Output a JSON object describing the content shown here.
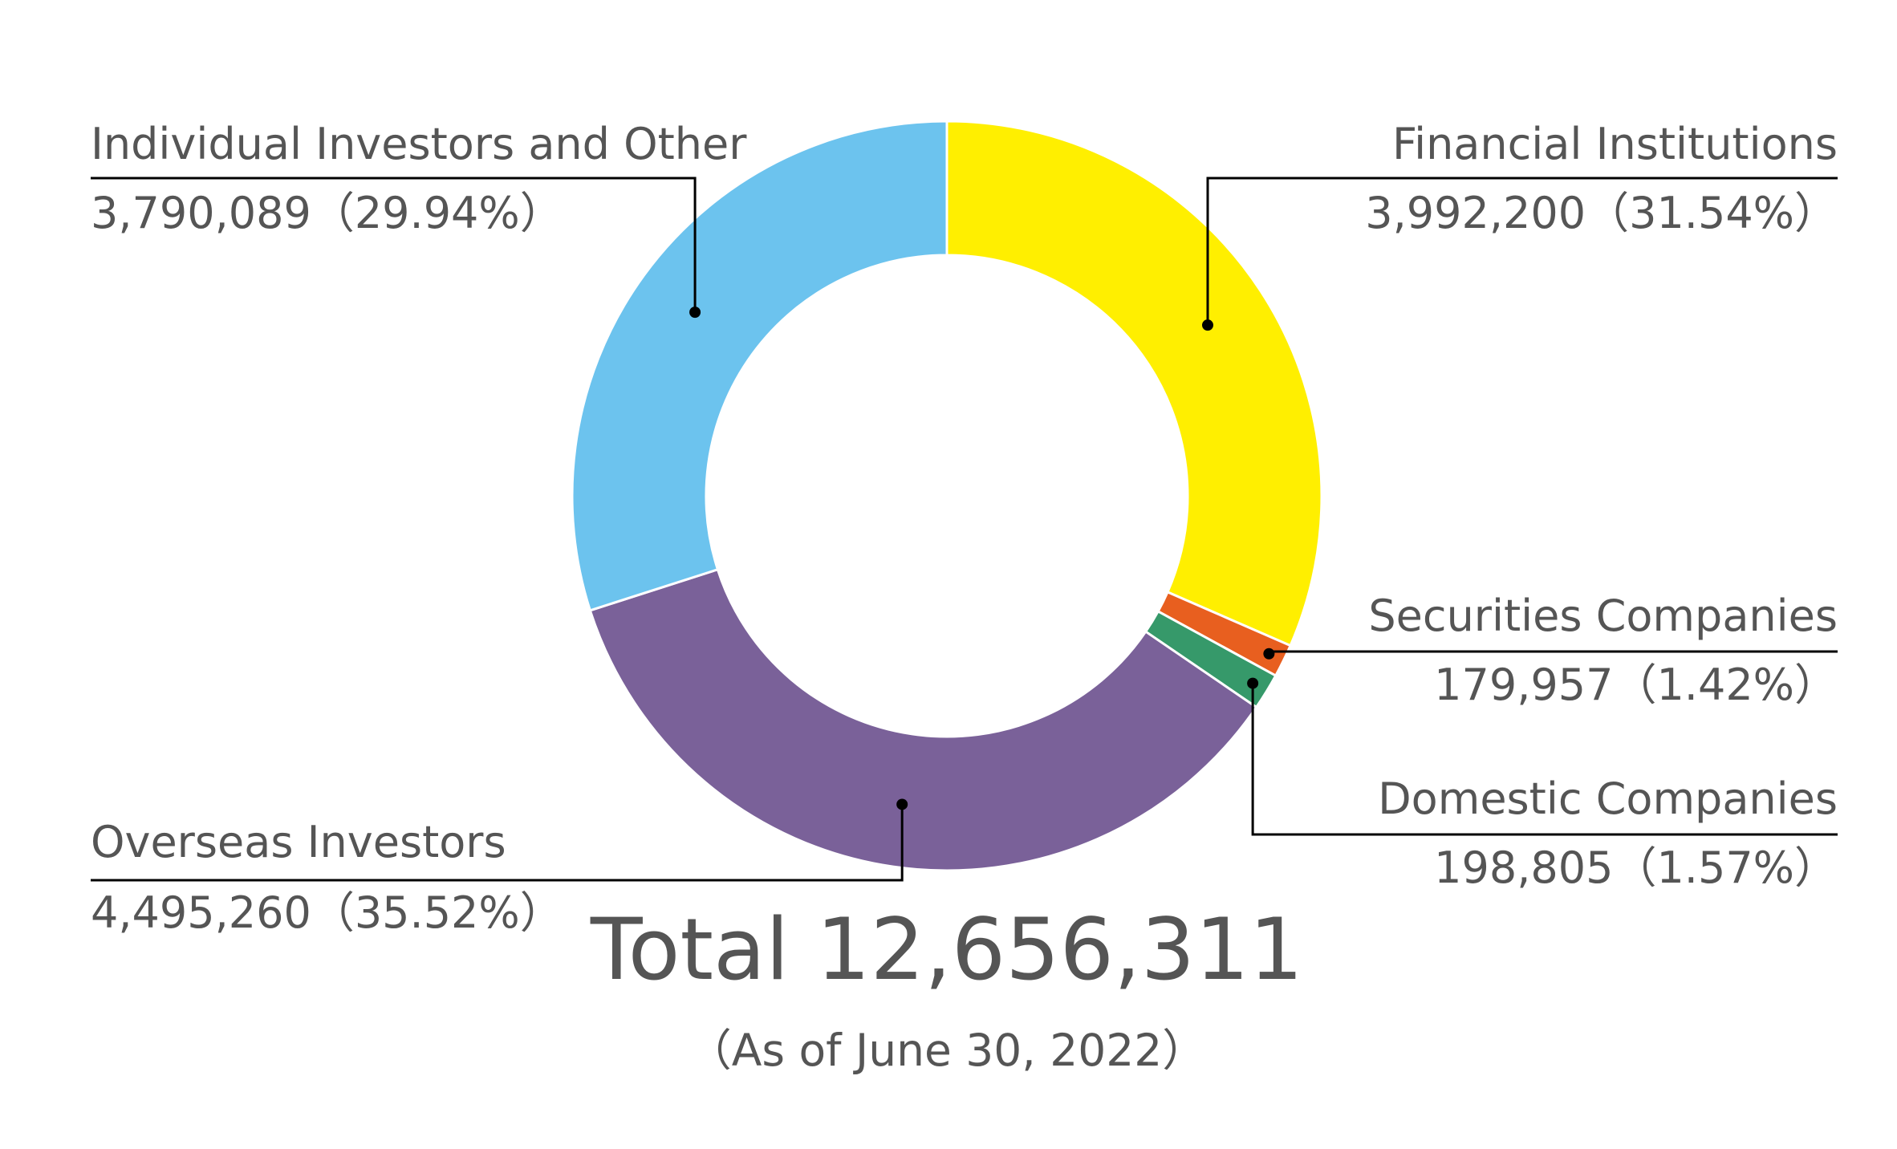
{
  "chart_data": {
    "type": "pie",
    "variant": "donut",
    "unit": "shares",
    "slices": [
      {
        "name": "Financial Institutions",
        "value": 3992200,
        "value_text": "3,992,200",
        "percent_text": "31.54%",
        "color": "#FFEF00",
        "label_side": "right"
      },
      {
        "name": "Securities Companies",
        "value": 179957,
        "value_text": "179,957",
        "percent_text": "1.42%",
        "color": "#E85F1F",
        "label_side": "right"
      },
      {
        "name": "Domestic Companies",
        "value": 198805,
        "value_text": "198,805",
        "percent_text": "1.57%",
        "color": "#36996A",
        "label_side": "right"
      },
      {
        "name": "Overseas Investors",
        "value": 4495260,
        "value_text": "4,495,260",
        "percent_text": "35.52%",
        "color": "#7A6199",
        "label_side": "left"
      },
      {
        "name": "Individual Investors and Other",
        "value": 3790089,
        "value_text": "3,790,089",
        "percent_text": "29.94%",
        "color": "#6CC3EE",
        "label_side": "left"
      }
    ],
    "start_angle_deg": 0,
    "direction": "clockwise"
  },
  "total": {
    "label": "Total",
    "value_text": "12,656,311"
  },
  "note": "As of June 30, 2022",
  "leader_color": "#000000"
}
